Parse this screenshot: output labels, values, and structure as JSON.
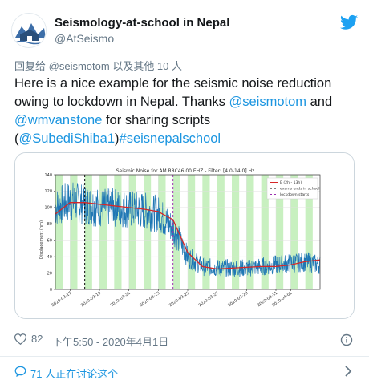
{
  "tweet": {
    "author": {
      "name": "Seismology-at-school in Nepal",
      "handle": "@AtSeismo"
    },
    "reply_to": {
      "prefix": "回复给",
      "handle": "@seismotom",
      "suffix": "以及其他 10 人"
    },
    "text": {
      "part1": "Here is a nice example for the seismic noise reduction owing to lockdown in Nepal. Thanks ",
      "mention1": "@seismotom",
      "part2": " and ",
      "mention2": "@wmvanstone",
      "part3": " for sharing scripts (",
      "mention3": "@SubediShiba1",
      "part4": ")",
      "hashtag": "#seisnepalschool"
    },
    "likes": "82",
    "timestamp": "下午5:50 - 2020年4月1日",
    "discussion": "71 人正在讨论这个",
    "colors": {
      "link": "#1b95e0",
      "muted": "#657786",
      "like": "#e0245e"
    }
  },
  "chart_data": {
    "type": "line",
    "title": "Seismic Noise for AM.R8C46.00.EHZ - Filter: [4.0-14.0] Hz",
    "ylabel": "Displacement (nm)",
    "xlabel": "",
    "ylim": [
      0,
      140
    ],
    "yticks": [
      0,
      20,
      40,
      60,
      80,
      100,
      120,
      140
    ],
    "xlim": [
      "2020-03-16",
      "2020-04-03"
    ],
    "xticks": [
      "2020-03-17",
      "2020-03-19",
      "2020-03-21",
      "2020-03-23",
      "2020-03-25",
      "2020-03-27",
      "2020-03-29",
      "2020-03-31",
      "2020-04-01"
    ],
    "grid": true,
    "legend_position": "top-right",
    "legend": [
      "E (2h - 13h)",
      "exams ends in school",
      "lockdown starts"
    ],
    "vlines": [
      {
        "label": "exams ends in school",
        "x": "2020-03-18",
        "color": "#000000",
        "style": "dashed"
      },
      {
        "label": "lockdown starts",
        "x": "2020-03-24",
        "color": "#9b2fae",
        "style": "dashed"
      }
    ],
    "smooth_series": {
      "name": "E (2h - 13h)",
      "color": "#d62728",
      "x": [
        "2020-03-16",
        "2020-03-17",
        "2020-03-18",
        "2020-03-19",
        "2020-03-20",
        "2020-03-21",
        "2020-03-22",
        "2020-03-23",
        "2020-03-24",
        "2020-03-25",
        "2020-03-26",
        "2020-03-27",
        "2020-03-28",
        "2020-03-29",
        "2020-03-30",
        "2020-03-31",
        "2020-04-01",
        "2020-04-02",
        "2020-04-03"
      ],
      "y": [
        92,
        106,
        106,
        104,
        102,
        100,
        98,
        95,
        85,
        45,
        28,
        25,
        26,
        27,
        28,
        28,
        30,
        34,
        36
      ]
    },
    "raw_series": {
      "color": "#1f77b4",
      "x": [
        "2020-03-16",
        "2020-03-17",
        "2020-03-18",
        "2020-03-19",
        "2020-03-20",
        "2020-03-21",
        "2020-03-22",
        "2020-03-23",
        "2020-03-24",
        "2020-03-25",
        "2020-03-26",
        "2020-03-27",
        "2020-03-28",
        "2020-03-29",
        "2020-03-30",
        "2020-03-31",
        "2020-04-01",
        "2020-04-02",
        "2020-04-03"
      ],
      "y": [
        100,
        108,
        104,
        100,
        100,
        98,
        96,
        92,
        75,
        40,
        28,
        26,
        26,
        26,
        28,
        30,
        32,
        34,
        30
      ],
      "amplitude": 18
    },
    "shaded_bands": [
      [
        "2020-03-16",
        "2020-03-16.5"
      ],
      [
        "2020-03-17",
        "2020-03-17.5"
      ],
      [
        "2020-03-18",
        "2020-03-18.5"
      ],
      [
        "2020-03-19",
        "2020-03-19.5"
      ],
      [
        "2020-03-20",
        "2020-03-20.5"
      ],
      [
        "2020-03-21",
        "2020-03-21.5"
      ],
      [
        "2020-03-22",
        "2020-03-22.5"
      ],
      [
        "2020-03-23",
        "2020-03-23.5"
      ],
      [
        "2020-03-24",
        "2020-03-24.5"
      ],
      [
        "2020-03-25",
        "2020-03-25.5"
      ],
      [
        "2020-03-26",
        "2020-03-26.5"
      ],
      [
        "2020-03-27",
        "2020-03-27.5"
      ],
      [
        "2020-03-28",
        "2020-03-28.5"
      ],
      [
        "2020-03-29",
        "2020-03-29.5"
      ],
      [
        "2020-03-30",
        "2020-03-30.5"
      ],
      [
        "2020-03-31",
        "2020-03-31.5"
      ],
      [
        "2020-04-01",
        "2020-04-01.5"
      ],
      [
        "2020-04-02",
        "2020-04-02.5"
      ]
    ],
    "band_color": "#c8f0c0"
  }
}
